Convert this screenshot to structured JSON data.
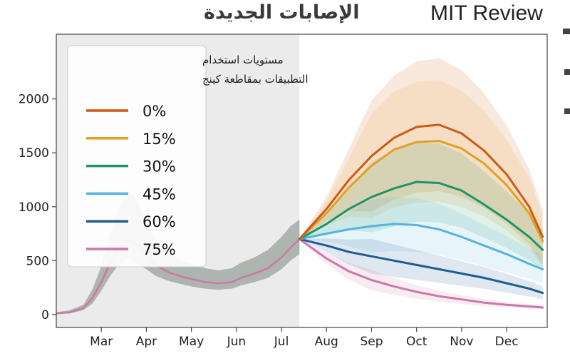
{
  "brand": "MIT Review",
  "chart_data": {
    "type": "line",
    "title": "الإصابات الجديدة",
    "xlabel": "",
    "ylabel": "",
    "x_ticks": [
      "Mar",
      "Apr",
      "May",
      "Jun",
      "Jul",
      "Aug",
      "Sep",
      "Oct",
      "Nov",
      "Dec"
    ],
    "y_ticks": [
      0,
      500,
      1000,
      1500,
      2000
    ],
    "ylim": [
      -120,
      2600
    ],
    "x_unit": "months since Feb 1",
    "xlim": [
      0,
      10.9
    ],
    "observed_until": 5.4,
    "legend": {
      "title_lines": [
        "مستويات استخدام",
        "التطبيقات بمقاطعة كينج"
      ],
      "placement": "top-left"
    },
    "observed": {
      "x": [
        0,
        0.3,
        0.6,
        0.8,
        1.0,
        1.2,
        1.4,
        1.6,
        1.8,
        2.0,
        2.2,
        2.5,
        2.8,
        3.0,
        3.3,
        3.6,
        3.9,
        4.1,
        4.4,
        4.7,
        5.0,
        5.2,
        5.4
      ],
      "y": [
        10,
        20,
        60,
        150,
        300,
        480,
        620,
        700,
        650,
        560,
        460,
        390,
        350,
        330,
        300,
        290,
        300,
        340,
        380,
        430,
        530,
        620,
        700
      ],
      "band_low": [
        5,
        10,
        40,
        100,
        220,
        360,
        470,
        520,
        470,
        420,
        360,
        310,
        280,
        260,
        240,
        230,
        240,
        270,
        300,
        340,
        420,
        500,
        560
      ],
      "band_high": [
        20,
        40,
        90,
        230,
        450,
        750,
        1000,
        1150,
        1050,
        850,
        680,
        560,
        500,
        470,
        430,
        410,
        430,
        480,
        530,
        600,
        720,
        820,
        880
      ],
      "color": "#c878a8",
      "band_color": "#9aa39a"
    },
    "series": [
      {
        "name": "0%",
        "color": "#cc5a16",
        "x": [
          5.4,
          6.0,
          6.5,
          7.0,
          7.5,
          8.0,
          8.5,
          9.0,
          9.5,
          10.0,
          10.5,
          10.8
        ],
        "y": [
          700,
          980,
          1250,
          1470,
          1640,
          1740,
          1760,
          1680,
          1520,
          1300,
          1000,
          720
        ],
        "band_spread": 0.35
      },
      {
        "name": "15%",
        "color": "#e0a024",
        "x": [
          5.4,
          6.0,
          6.5,
          7.0,
          7.5,
          8.0,
          8.5,
          9.0,
          9.5,
          10.0,
          10.5,
          10.8
        ],
        "y": [
          700,
          940,
          1180,
          1380,
          1530,
          1600,
          1610,
          1540,
          1400,
          1200,
          940,
          680
        ],
        "band_spread": 0.35
      },
      {
        "name": "30%",
        "color": "#1e9466",
        "x": [
          5.4,
          6.0,
          6.5,
          7.0,
          7.5,
          8.0,
          8.5,
          9.0,
          9.5,
          10.0,
          10.5,
          10.8
        ],
        "y": [
          700,
          840,
          980,
          1090,
          1170,
          1230,
          1220,
          1150,
          1020,
          880,
          720,
          600
        ],
        "band_spread": 0.3
      },
      {
        "name": "45%",
        "color": "#56b4dc",
        "x": [
          5.4,
          6.0,
          6.5,
          7.0,
          7.5,
          8.0,
          8.5,
          9.0,
          9.5,
          10.0,
          10.5,
          10.8
        ],
        "y": [
          700,
          750,
          790,
          820,
          840,
          830,
          790,
          720,
          640,
          560,
          470,
          420
        ],
        "band_spread": 0.3
      },
      {
        "name": "60%",
        "color": "#1d5d92",
        "x": [
          5.4,
          6.0,
          6.5,
          7.0,
          7.5,
          8.0,
          8.5,
          9.0,
          9.5,
          10.0,
          10.5,
          10.8
        ],
        "y": [
          700,
          640,
          580,
          540,
          500,
          460,
          420,
          380,
          340,
          290,
          240,
          200
        ],
        "band_spread": 0.3
      },
      {
        "name": "75%",
        "color": "#cc78a8",
        "x": [
          5.4,
          6.0,
          6.5,
          7.0,
          7.5,
          8.0,
          8.5,
          9.0,
          9.5,
          10.0,
          10.5,
          10.8
        ],
        "y": [
          700,
          520,
          400,
          320,
          260,
          210,
          170,
          140,
          110,
          90,
          75,
          65
        ],
        "band_spread": 0.3
      }
    ]
  }
}
